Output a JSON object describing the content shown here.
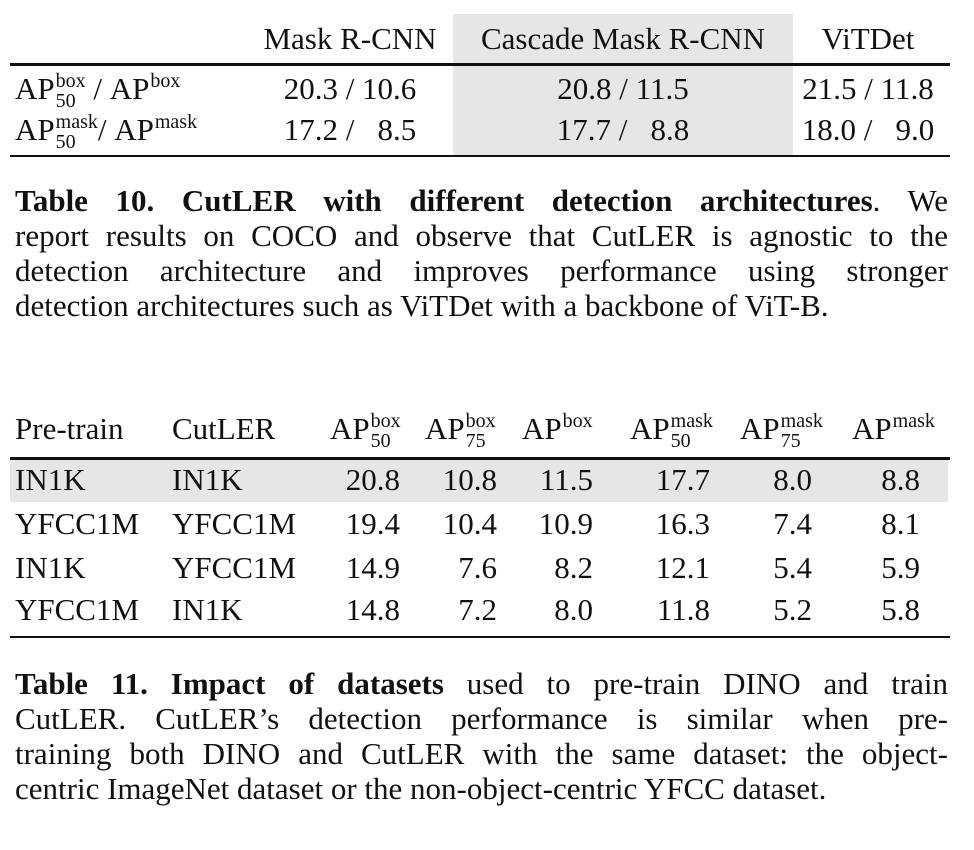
{
  "table10": {
    "headers": [
      "Mask R-CNN",
      "Cascade Mask R-CNN",
      "ViTDet"
    ],
    "rows": [
      {
        "label_left": {
          "base": "AP",
          "sup": "box",
          "sub": "50"
        },
        "sep": " / ",
        "label_right": {
          "base": "AP",
          "sup": "box"
        },
        "values": [
          "20.3 / 10.6",
          "20.8 / 11.5",
          "21.5 / 11.8"
        ]
      },
      {
        "label_left": {
          "base": "AP",
          "sup": "mask",
          "sub": "50"
        },
        "sep": "/ ",
        "label_right": {
          "base": "AP",
          "sup": "mask"
        },
        "values": [
          "17.2 /   8.5",
          "17.7 /   8.8",
          "18.0 /   9.0"
        ]
      }
    ],
    "highlight_column": "Cascade Mask R-CNN",
    "caption": {
      "label": "Table 10.",
      "bold_title": "CutLER with different detection architectures",
      "lines": [
        ". We",
        "report results on COCO and observe that CutLER is agnostic to the",
        "detection architecture and improves performance using stronger",
        "detection architectures such as ViTDet with a backbone of ViT-B."
      ]
    }
  },
  "table11": {
    "headers": [
      {
        "base": "Pre-train"
      },
      {
        "base": "CutLER"
      },
      {
        "base": "AP",
        "sup": "box",
        "sub": "50"
      },
      {
        "base": "AP",
        "sup": "box",
        "sub": "75"
      },
      {
        "base": "AP",
        "sup": "box"
      },
      {
        "base": "AP",
        "sup": "mask",
        "sub": "50"
      },
      {
        "base": "AP",
        "sup": "mask",
        "sub": "75"
      },
      {
        "base": "AP",
        "sup": "mask"
      }
    ],
    "rows": [
      [
        "IN1K",
        "IN1K",
        "20.8",
        "10.8",
        "11.5",
        "17.7",
        "8.0",
        "8.8"
      ],
      [
        "YFCC1M",
        "YFCC1M",
        "19.4",
        "10.4",
        "10.9",
        "16.3",
        "7.4",
        "8.1"
      ],
      [
        "IN1K",
        "YFCC1M",
        "14.9",
        "7.6",
        "8.2",
        "12.1",
        "5.4",
        "5.9"
      ],
      [
        "YFCC1M",
        "IN1K",
        "14.8",
        "7.2",
        "8.0",
        "11.8",
        "5.2",
        "5.8"
      ]
    ],
    "highlight_row": 0,
    "caption": {
      "label": "Table 11.",
      "bold_title": "Impact of datasets",
      "lines": [
        " used to pre-train DINO and train",
        "CutLER. CutLER’s detection performance is similar when pre-",
        "training both DINO and CutLER with the same dataset: the object-",
        "centric ImageNet dataset or the non-object-centric YFCC dataset."
      ]
    }
  },
  "colors": {
    "highlight": "#e6e6e6",
    "text": "#111111"
  }
}
